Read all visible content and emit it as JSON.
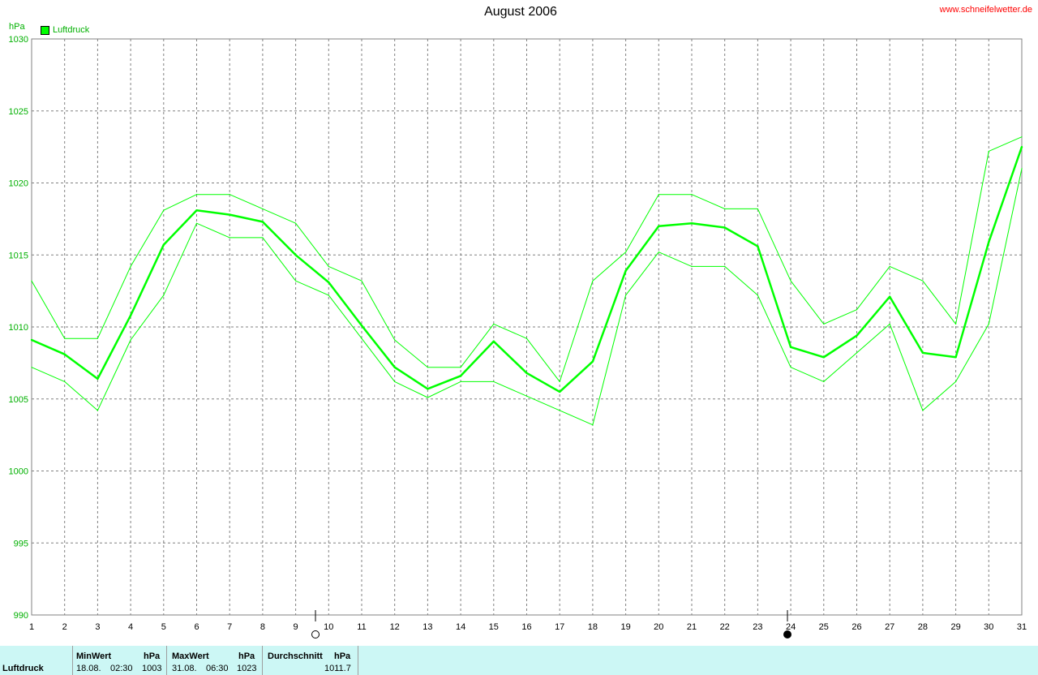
{
  "header": {
    "title": "August 2006",
    "site": "www.schneifelwetter.de",
    "unit": "hPa",
    "legend": "Luftdruck"
  },
  "colors": {
    "series": "#00ff00",
    "axis_text": "#00b000",
    "site_link": "#ff0000",
    "grid": "#808080",
    "stats_bg": "#ccf7f5"
  },
  "chart_data": {
    "type": "line",
    "title": "August 2006",
    "ylabel": "hPa",
    "ylim": [
      990,
      1030
    ],
    "yticks": [
      990,
      995,
      1000,
      1005,
      1010,
      1015,
      1020,
      1025,
      1030
    ],
    "x": [
      1,
      2,
      3,
      4,
      5,
      6,
      7,
      8,
      9,
      10,
      11,
      12,
      13,
      14,
      15,
      16,
      17,
      18,
      19,
      20,
      21,
      22,
      23,
      24,
      25,
      26,
      27,
      28,
      29,
      30,
      31
    ],
    "grid": true,
    "series": [
      {
        "name": "Luftdruck",
        "role": "mean",
        "values": [
          1009.1,
          1008.1,
          1006.4,
          1010.8,
          1015.7,
          1018.1,
          1017.8,
          1017.3,
          1015.0,
          1013.1,
          1010.1,
          1007.2,
          1005.7,
          1006.6,
          1009.0,
          1006.8,
          1005.5,
          1007.6,
          1013.9,
          1017.0,
          1017.2,
          1016.9,
          1015.6,
          1008.6,
          1007.9,
          1009.4,
          1012.1,
          1008.2,
          1007.9,
          1015.9,
          1022.5
        ]
      },
      {
        "role": "max",
        "values": [
          1013.2,
          1009.2,
          1009.2,
          1014.2,
          1018.1,
          1019.2,
          1019.2,
          1018.2,
          1017.2,
          1014.2,
          1013.2,
          1009.1,
          1007.2,
          1007.2,
          1010.2,
          1009.2,
          1006.2,
          1013.2,
          1015.2,
          1019.2,
          1019.2,
          1018.2,
          1018.2,
          1013.2,
          1010.2,
          1011.2,
          1014.2,
          1013.2,
          1010.2,
          1022.2,
          1023.2
        ]
      },
      {
        "role": "min",
        "values": [
          1007.2,
          1006.2,
          1004.2,
          1009.1,
          1012.2,
          1017.2,
          1016.2,
          1016.2,
          1013.2,
          1012.2,
          1009.2,
          1006.2,
          1005.1,
          1006.2,
          1006.2,
          1005.2,
          1004.2,
          1003.2,
          1012.2,
          1015.2,
          1014.2,
          1014.2,
          1012.2,
          1007.2,
          1006.2,
          1008.2,
          1010.2,
          1004.2,
          1006.2,
          1010.2,
          1021.0
        ]
      }
    ],
    "moon_phases": [
      {
        "day": 9.6,
        "phase": "full"
      },
      {
        "day": 23.9,
        "phase": "new"
      }
    ]
  },
  "stats": {
    "row_label": "Luftdruck",
    "min": {
      "header": "MinWert",
      "unit": "hPa",
      "date": "18.08.",
      "time": "02:30",
      "value": "1003"
    },
    "max": {
      "header": "MaxWert",
      "unit": "hPa",
      "date": "31.08.",
      "time": "06:30",
      "value": "1023"
    },
    "avg": {
      "header": "Durchschnitt",
      "unit": "hPa",
      "value": "1011.7"
    }
  }
}
